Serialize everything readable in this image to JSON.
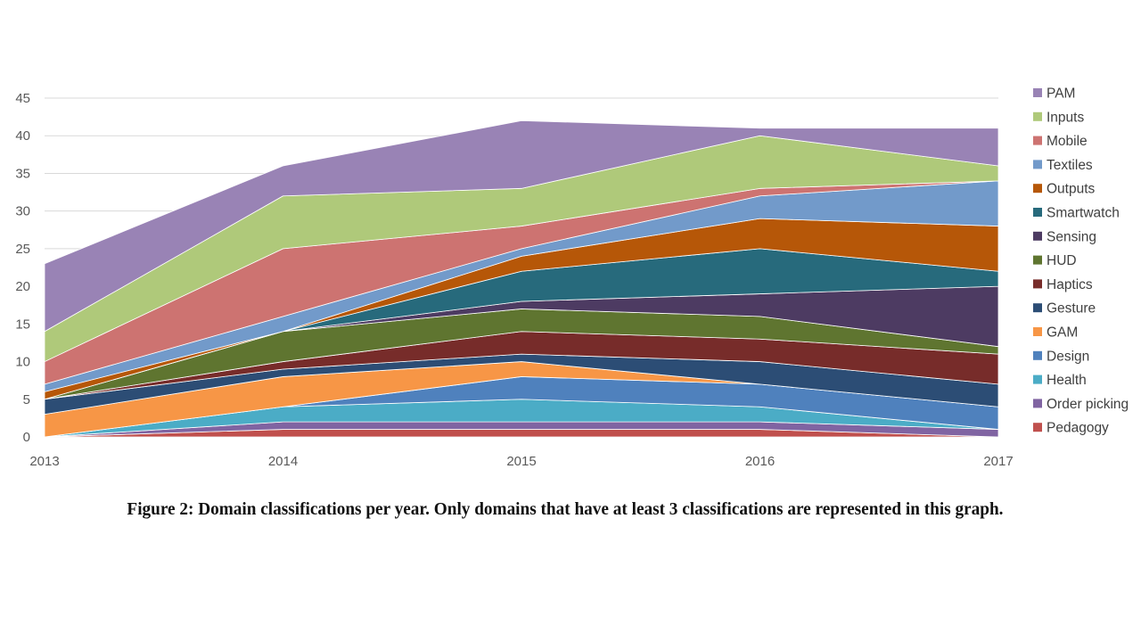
{
  "caption": "Figure 2: Domain classifications per year. Only domains that have at least 3 classifications are represented in this graph.",
  "chart_data": {
    "type": "area",
    "stacked": true,
    "x": [
      "2013",
      "2014",
      "2015",
      "2016",
      "2017"
    ],
    "ylim": [
      0,
      45
    ],
    "yticks": [
      0,
      5,
      10,
      15,
      20,
      25,
      30,
      35,
      40,
      45
    ],
    "grid": true,
    "legend_position": "right",
    "series": [
      {
        "name": "Pedagogy",
        "color": "#c0504d",
        "values": [
          0,
          1,
          1,
          1,
          0
        ]
      },
      {
        "name": "Order picking",
        "color": "#8064a2",
        "values": [
          0,
          1,
          1,
          1,
          1
        ]
      },
      {
        "name": "Health",
        "color": "#4bacc6",
        "values": [
          0,
          2,
          3,
          2,
          0
        ]
      },
      {
        "name": "Design",
        "color": "#4f81bd",
        "values": [
          0,
          0,
          3,
          3,
          3
        ]
      },
      {
        "name": "GAM",
        "color": "#f79646",
        "values": [
          3,
          4,
          2,
          0,
          0
        ]
      },
      {
        "name": "Gesture",
        "color": "#2c4d75",
        "values": [
          2,
          1,
          1,
          3,
          3
        ]
      },
      {
        "name": "Haptics",
        "color": "#772c2a",
        "values": [
          0,
          1,
          3,
          3,
          4
        ]
      },
      {
        "name": "HUD",
        "color": "#5f7530",
        "values": [
          0,
          4,
          3,
          3,
          1
        ]
      },
      {
        "name": "Sensing",
        "color": "#4d3b62",
        "values": [
          0,
          0,
          1,
          3,
          8
        ]
      },
      {
        "name": "Smartwatch",
        "color": "#276a7c",
        "values": [
          0,
          0,
          4,
          6,
          2
        ]
      },
      {
        "name": "Outputs",
        "color": "#b65708",
        "values": [
          1,
          0,
          2,
          4,
          6
        ]
      },
      {
        "name": "Textiles",
        "color": "#729aca",
        "values": [
          1,
          2,
          1,
          3,
          6
        ]
      },
      {
        "name": "Mobile",
        "color": "#cd7371",
        "values": [
          3,
          9,
          3,
          1,
          0
        ]
      },
      {
        "name": "Inputs",
        "color": "#afc97a",
        "values": [
          4,
          7,
          5,
          7,
          2
        ]
      },
      {
        "name": "PAM",
        "color": "#9983b5",
        "values": [
          9,
          4,
          9,
          1,
          5
        ]
      }
    ]
  }
}
